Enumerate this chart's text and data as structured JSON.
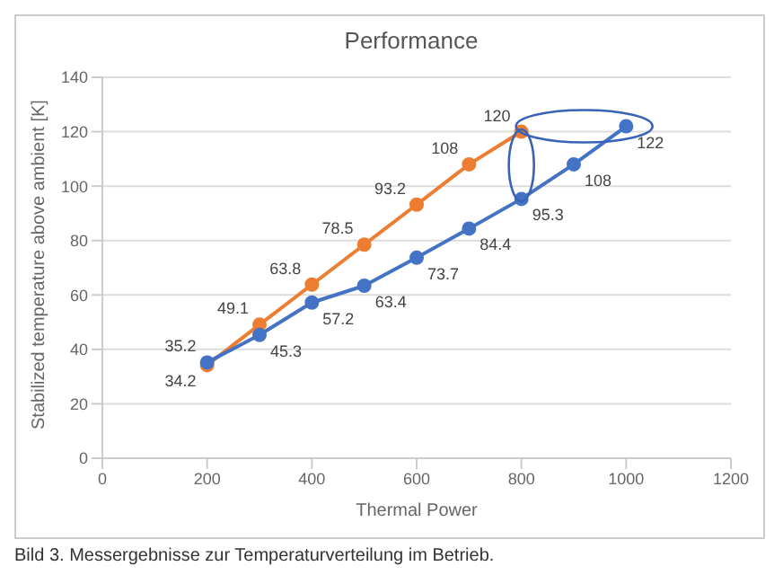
{
  "chart_data": {
    "type": "line",
    "title": "Performance",
    "xlabel": "Thermal Power",
    "ylabel": "Stabilized temperature above ambient [K]",
    "series": [
      {
        "color": "#ed7d31",
        "x": [
          200,
          300,
          400,
          500,
          600,
          700,
          800
        ],
        "values": [
          34.2,
          49.1,
          63.8,
          78.5,
          93.2,
          108,
          120
        ]
      },
      {
        "color": "#4472c4",
        "x": [
          200,
          300,
          400,
          500,
          600,
          700,
          800,
          900,
          1000
        ],
        "values": [
          35.2,
          45.3,
          57.2,
          63.4,
          73.7,
          84.4,
          95.3,
          108,
          122
        ]
      }
    ],
    "xlim": [
      0,
      1200
    ],
    "xticks": [
      0,
      200,
      400,
      600,
      800,
      1000,
      1200
    ],
    "ylim": [
      0,
      140
    ],
    "yticks": [
      0,
      20,
      40,
      60,
      80,
      100,
      120,
      140
    ],
    "grid": "y",
    "marker": "circle",
    "line_style": "solid",
    "data_labels": true,
    "annotations": [
      "Bild 3. Messergebnisse zur Temperaturverteilung im Betrieb."
    ]
  }
}
